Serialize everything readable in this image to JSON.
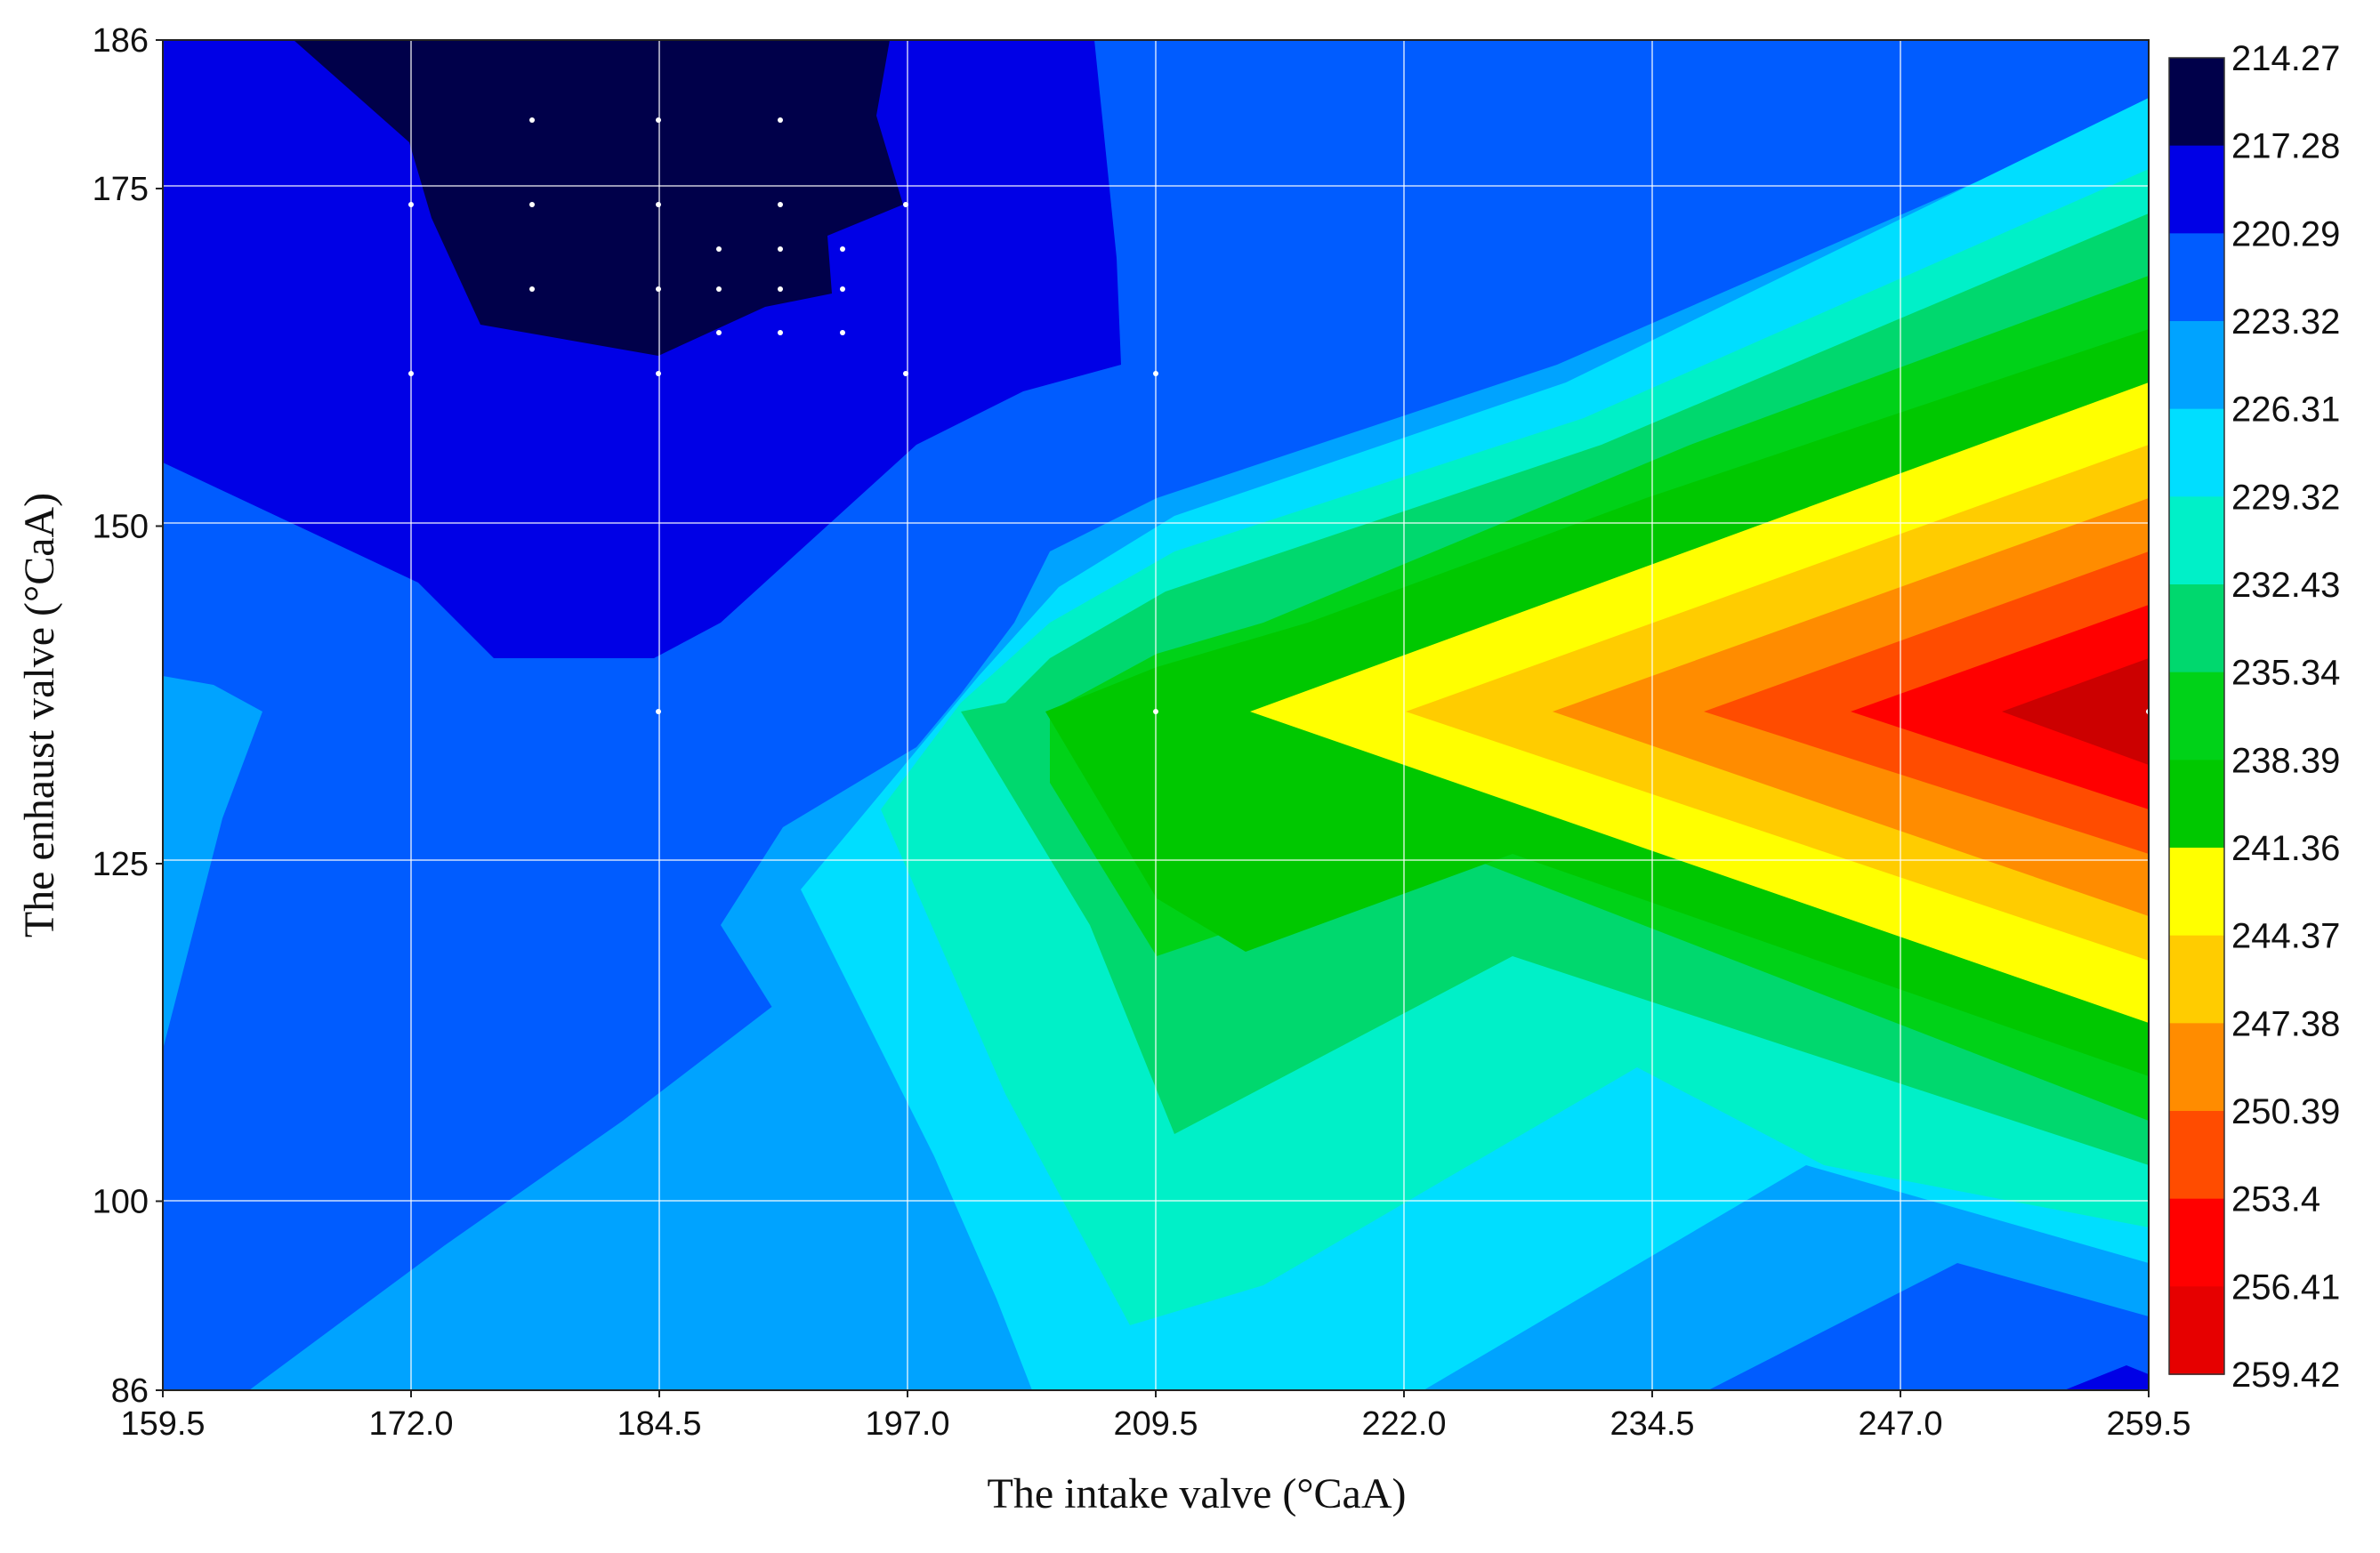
{
  "chart_data": {
    "type": "heatmap",
    "subtype": "filled-contour",
    "xlabel": "The intake valve (°CaA)",
    "ylabel": "The enhaust valve (°CaA)",
    "x_ticks": [
      "159.5",
      "172.0",
      "184.5",
      "197.0",
      "209.5",
      "222.0",
      "234.5",
      "247.0",
      "259.5"
    ],
    "y_ticks": [
      "86",
      "100",
      "125",
      "150",
      "175",
      "186"
    ],
    "y_tick_values": [
      86,
      100,
      125,
      150,
      175,
      186
    ],
    "xlim": [
      159.5,
      259.5
    ],
    "ylim": [
      86,
      186
    ],
    "grid": true,
    "peak": {
      "x": 259.5,
      "y": 136,
      "value": 259.42
    },
    "ridge_apex": {
      "x": 213,
      "y": 136
    },
    "minimum_region": {
      "x": [
        177,
        197
      ],
      "y": [
        165,
        186
      ],
      "value": 214.27
    },
    "colorbar": {
      "position": "right",
      "levels": [
        "214.27",
        "217.28",
        "220.29",
        "223.32",
        "226.31",
        "229.32",
        "232.43",
        "235.34",
        "238.39",
        "241.36",
        "244.37",
        "247.38",
        "250.39",
        "253.4",
        "256.41",
        "259.42"
      ],
      "colors": [
        "#00004a",
        "#0000e6",
        "#005cff",
        "#00a3ff",
        "#00deff",
        "#00f0c8",
        "#00d86e",
        "#00d218",
        "#00c800",
        "#ffff00",
        "#ffcc00",
        "#ff8c00",
        "#ff4c00",
        "#ff0000",
        "#e60000",
        "#cc0000"
      ]
    },
    "z_samples": [
      {
        "x": 159.5,
        "y": 186,
        "z": 220.29
      },
      {
        "x": 184.5,
        "y": 180,
        "z": 214.27
      },
      {
        "x": 209.5,
        "y": 186,
        "z": 220.29
      },
      {
        "x": 259.5,
        "y": 186,
        "z": 220.29
      },
      {
        "x": 159.5,
        "y": 136,
        "z": 223.32
      },
      {
        "x": 184.5,
        "y": 145,
        "z": 217.28
      },
      {
        "x": 209.5,
        "y": 136,
        "z": 238.39
      },
      {
        "x": 234.5,
        "y": 136,
        "z": 247.38
      },
      {
        "x": 259.5,
        "y": 136,
        "z": 259.42
      },
      {
        "x": 209.5,
        "y": 100,
        "z": 226.31
      },
      {
        "x": 234.5,
        "y": 100,
        "z": 226.31
      },
      {
        "x": 259.5,
        "y": 90,
        "z": 217.28
      }
    ]
  }
}
